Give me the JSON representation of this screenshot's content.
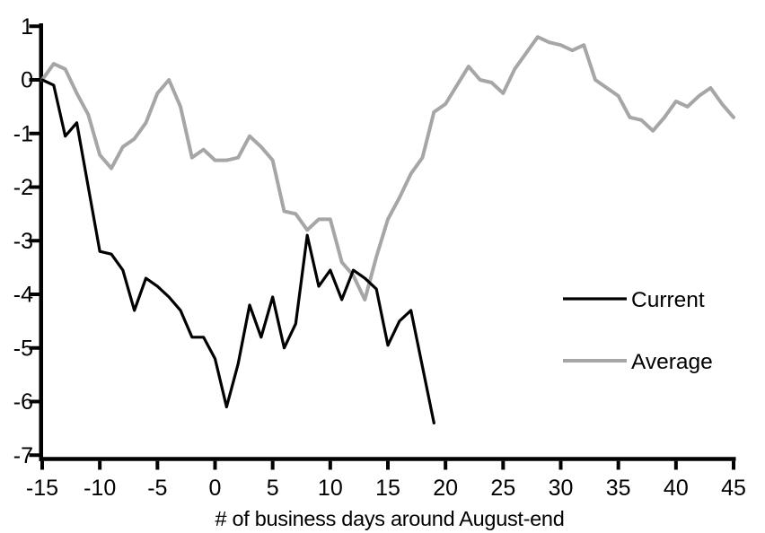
{
  "chart_data": {
    "type": "line",
    "title": "",
    "xlabel": "# of business days around August-end",
    "ylabel": "",
    "xlim": [
      -15,
      45
    ],
    "ylim": [
      -7,
      1
    ],
    "x_ticks": [
      -15,
      -10,
      -5,
      0,
      5,
      10,
      15,
      20,
      25,
      30,
      35,
      40,
      45
    ],
    "y_ticks": [
      1,
      0,
      -1,
      -2,
      -3,
      -4,
      -5,
      -6,
      -7
    ],
    "grid": false,
    "legend_position": "center-right",
    "axis_color": "#000000",
    "background_color": "#ffffff",
    "series": [
      {
        "name": "Current",
        "color": "#000000",
        "x": [
          -15,
          -14,
          -13,
          -12,
          -11,
          -10,
          -9,
          -8,
          -7,
          -6,
          -5,
          -4,
          -3,
          -2,
          -1,
          0,
          1,
          2,
          3,
          4,
          5,
          6,
          7,
          8,
          9,
          10,
          11,
          12,
          13,
          14,
          15,
          16,
          17,
          18,
          19
        ],
        "values": [
          0,
          -0.1,
          -1.05,
          -0.8,
          -2.0,
          -3.2,
          -3.25,
          -3.55,
          -4.3,
          -3.7,
          -3.85,
          -4.05,
          -4.3,
          -4.8,
          -4.8,
          -5.2,
          -6.1,
          -5.3,
          -4.2,
          -4.8,
          -4.05,
          -5.0,
          -4.55,
          -2.9,
          -3.85,
          -3.55,
          -4.1,
          -3.55,
          -3.7,
          -3.9,
          -4.95,
          -4.5,
          -4.3,
          -5.35,
          -6.4
        ]
      },
      {
        "name": "Average",
        "color": "#A6A6A6",
        "x": [
          -15,
          -14,
          -13,
          -12,
          -11,
          -10,
          -9,
          -8,
          -7,
          -6,
          -5,
          -4,
          -3,
          -2,
          -1,
          0,
          1,
          2,
          3,
          4,
          5,
          6,
          7,
          8,
          9,
          10,
          11,
          12,
          13,
          14,
          15,
          16,
          17,
          18,
          19,
          20,
          21,
          22,
          23,
          24,
          25,
          26,
          27,
          28,
          29,
          30,
          31,
          32,
          33,
          34,
          35,
          36,
          37,
          38,
          39,
          40,
          41,
          42,
          43,
          44,
          45
        ],
        "values": [
          0,
          0.3,
          0.2,
          -0.25,
          -0.65,
          -1.4,
          -1.65,
          -1.25,
          -1.1,
          -0.8,
          -0.25,
          0.0,
          -0.5,
          -1.45,
          -1.3,
          -1.5,
          -1.5,
          -1.45,
          -1.05,
          -1.25,
          -1.5,
          -2.45,
          -2.5,
          -2.8,
          -2.6,
          -2.6,
          -3.4,
          -3.65,
          -4.1,
          -3.3,
          -2.6,
          -2.2,
          -1.75,
          -1.45,
          -0.6,
          -0.45,
          -0.1,
          0.25,
          0.0,
          -0.05,
          -0.25,
          0.2,
          0.5,
          0.8,
          0.7,
          0.65,
          0.55,
          0.65,
          0.0,
          -0.15,
          -0.3,
          -0.7,
          -0.75,
          -0.95,
          -0.7,
          -0.4,
          -0.5,
          -0.3,
          -0.15,
          -0.45,
          -0.7
        ]
      }
    ]
  },
  "legend": {
    "items": [
      {
        "label": "Current"
      },
      {
        "label": "Average"
      }
    ]
  }
}
